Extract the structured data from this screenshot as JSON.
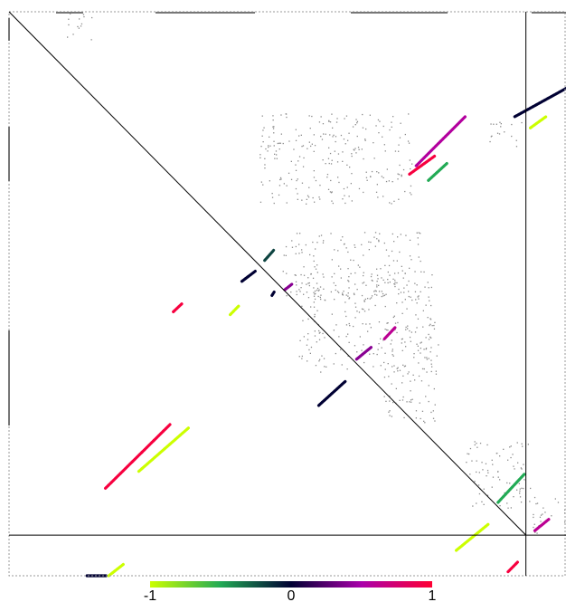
{
  "chart_data": {
    "type": "heatmap",
    "title": "",
    "xlabel": "",
    "ylabel": "",
    "xlim": [
      0,
      100
    ],
    "ylim": [
      0,
      100
    ],
    "grid": false,
    "divider_x": 92.8,
    "divider_y": 92.8,
    "colorbar": {
      "position": "bottom",
      "range": [
        -1,
        1
      ],
      "tick_labels": [
        "-1",
        "0",
        "1"
      ],
      "tick_values": [
        -1,
        0,
        1
      ],
      "stops": [
        {
          "v": -1,
          "color": "#ccff00"
        },
        {
          "v": -0.5,
          "color": "#22aa55"
        },
        {
          "v": 0,
          "color": "#000033"
        },
        {
          "v": 0.5,
          "color": "#aa00aa"
        },
        {
          "v": 1,
          "color": "#ff0033"
        }
      ]
    },
    "segments": [
      {
        "x1": 90.8,
        "y1": 18.6,
        "x2": 100.0,
        "y2": 13.6,
        "value": 0.0
      },
      {
        "x1": 93.6,
        "y1": 20.6,
        "x2": 96.4,
        "y2": 18.6,
        "value": -1.0
      },
      {
        "x1": 71.9,
        "y1": 28.8,
        "x2": 76.4,
        "y2": 25.6,
        "value": 0.95
      },
      {
        "x1": 73.1,
        "y1": 27.3,
        "x2": 81.9,
        "y2": 18.6,
        "value": 0.55
      },
      {
        "x1": 75.3,
        "y1": 29.9,
        "x2": 78.6,
        "y2": 26.9,
        "value": -0.5
      },
      {
        "x1": 45.9,
        "y1": 44.1,
        "x2": 47.5,
        "y2": 42.3,
        "value": -0.2
      },
      {
        "x1": 41.8,
        "y1": 47.8,
        "x2": 44.2,
        "y2": 46.0,
        "value": 0.0
      },
      {
        "x1": 47.2,
        "y1": 50.3,
        "x2": 47.6,
        "y2": 49.7,
        "value": 0.0
      },
      {
        "x1": 29.5,
        "y1": 53.2,
        "x2": 31.0,
        "y2": 51.8,
        "value": 0.95
      },
      {
        "x1": 39.7,
        "y1": 53.7,
        "x2": 41.2,
        "y2": 52.2,
        "value": -1.0
      },
      {
        "x1": 49.5,
        "y1": 49.3,
        "x2": 50.8,
        "y2": 48.3,
        "value": 0.4
      },
      {
        "x1": 62.4,
        "y1": 61.6,
        "x2": 65.0,
        "y2": 59.5,
        "value": 0.4
      },
      {
        "x1": 67.4,
        "y1": 58.0,
        "x2": 69.3,
        "y2": 56.0,
        "value": 0.6
      },
      {
        "x1": 55.6,
        "y1": 69.8,
        "x2": 60.4,
        "y2": 65.5,
        "value": 0.0
      },
      {
        "x1": 17.3,
        "y1": 84.5,
        "x2": 28.9,
        "y2": 73.2,
        "value": 0.95
      },
      {
        "x1": 23.3,
        "y1": 81.5,
        "x2": 32.2,
        "y2": 73.8,
        "value": -1.0
      },
      {
        "x1": 87.8,
        "y1": 87.0,
        "x2": 92.5,
        "y2": 82.0,
        "value": -0.5
      },
      {
        "x1": 94.4,
        "y1": 92.0,
        "x2": 96.9,
        "y2": 90.0,
        "value": 0.6
      },
      {
        "x1": 80.3,
        "y1": 95.5,
        "x2": 86.0,
        "y2": 90.9,
        "value": -1.0
      },
      {
        "x1": 89.6,
        "y1": 99.3,
        "x2": 91.3,
        "y2": 97.6,
        "value": 0.95
      },
      {
        "x1": 14.0,
        "y1": 104.2,
        "x2": 17.5,
        "y2": 100.9,
        "value": 0.0
      },
      {
        "x1": 17.9,
        "y1": 100.7,
        "x2": 20.5,
        "y2": 98.0,
        "value": -1.0
      }
    ],
    "faint_regions": [
      {
        "x": 10,
        "y": 0,
        "w": 5,
        "h": 5
      },
      {
        "x": 45,
        "y": 18,
        "w": 28,
        "h": 16
      },
      {
        "x": 86,
        "y": 19,
        "w": 6,
        "h": 5
      },
      {
        "x": 49,
        "y": 39,
        "w": 25,
        "h": 12
      },
      {
        "x": 52,
        "y": 46,
        "w": 24,
        "h": 18
      },
      {
        "x": 67,
        "y": 55,
        "w": 10,
        "h": 18
      },
      {
        "x": 82,
        "y": 76,
        "w": 12,
        "h": 12
      },
      {
        "x": 94,
        "y": 86,
        "w": 6,
        "h": 7
      }
    ]
  }
}
